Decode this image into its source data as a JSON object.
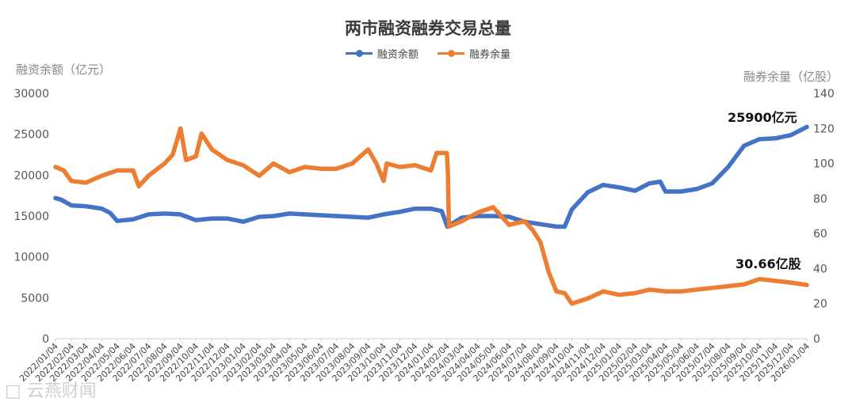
{
  "chart_data": {
    "type": "line",
    "title": "两市融资融券交易总量",
    "ylabel_left": "融资余额（亿元）",
    "ylabel_right": "融券余量（亿股）",
    "ylim_left": [
      0,
      30000
    ],
    "yticks_left": [
      "0",
      "5000",
      "10000",
      "15000",
      "20000",
      "25000",
      "30000"
    ],
    "ylim_right": [
      0,
      140
    ],
    "yticks_right": [
      "0",
      "20",
      "40",
      "60",
      "80",
      "100",
      "120",
      "140"
    ],
    "legend_position": "top-center",
    "grid": false,
    "x_range": [
      "2022/01/04",
      "2026/01/04"
    ],
    "x_tick_labels": [
      "2022/01/04",
      "2022/02/04",
      "2022/03/04",
      "2022/04/04",
      "2022/05/04",
      "2022/06/04",
      "2022/07/04",
      "2022/08/04",
      "2022/09/04",
      "2022/10/04",
      "2022/11/04",
      "2022/12/04",
      "2023/01/04",
      "2023/02/04",
      "2023/03/04",
      "2023/04/04",
      "2023/05/04",
      "2023/06/04",
      "2023/07/04",
      "2023/08/04",
      "2023/09/04",
      "2023/10/04",
      "2023/11/04",
      "2023/12/04",
      "2024/01/04",
      "2024/02/04",
      "2024/03/04",
      "2024/04/04",
      "2024/05/04",
      "2024/06/04",
      "2024/07/04",
      "2024/08/04",
      "2024/09/04",
      "2024/10/04",
      "2024/11/04",
      "2024/12/04",
      "2025/01/04",
      "2025/02/04",
      "2025/03/04",
      "2025/04/04",
      "2025/05/04",
      "2025/06/04",
      "2025/07/04",
      "2025/08/04",
      "2025/09/04",
      "2025/10/04",
      "2025/11/04",
      "2025/12/04",
      "2026/01/04"
    ],
    "series": [
      {
        "name": "融资余额",
        "axis": "left",
        "color": "#4472C4",
        "points": [
          [
            "2022/01/04",
            17200
          ],
          [
            "2022/01/15",
            17000
          ],
          [
            "2022/02/04",
            16300
          ],
          [
            "2022/03/04",
            16200
          ],
          [
            "2022/04/04",
            15900
          ],
          [
            "2022/04/20",
            15400
          ],
          [
            "2022/05/04",
            14400
          ],
          [
            "2022/06/04",
            14600
          ],
          [
            "2022/07/04",
            15200
          ],
          [
            "2022/08/04",
            15300
          ],
          [
            "2022/09/04",
            15200
          ],
          [
            "2022/10/04",
            14500
          ],
          [
            "2022/11/04",
            14700
          ],
          [
            "2022/12/04",
            14700
          ],
          [
            "2023/01/04",
            14300
          ],
          [
            "2023/02/04",
            14900
          ],
          [
            "2023/03/04",
            15000
          ],
          [
            "2023/04/04",
            15300
          ],
          [
            "2023/05/04",
            15200
          ],
          [
            "2023/06/04",
            15100
          ],
          [
            "2023/07/04",
            15000
          ],
          [
            "2023/08/04",
            14900
          ],
          [
            "2023/09/04",
            14800
          ],
          [
            "2023/10/04",
            15200
          ],
          [
            "2023/11/04",
            15500
          ],
          [
            "2023/12/04",
            15900
          ],
          [
            "2024/01/04",
            15900
          ],
          [
            "2024/01/25",
            15600
          ],
          [
            "2024/02/05",
            13700
          ],
          [
            "2024/03/04",
            14800
          ],
          [
            "2024/04/04",
            15000
          ],
          [
            "2024/05/04",
            15000
          ],
          [
            "2024/06/04",
            14900
          ],
          [
            "2024/07/04",
            14300
          ],
          [
            "2024/08/04",
            14000
          ],
          [
            "2024/09/04",
            13700
          ],
          [
            "2024/09/20",
            13700
          ],
          [
            "2024/10/04",
            15800
          ],
          [
            "2024/11/04",
            17900
          ],
          [
            "2024/12/04",
            18800
          ],
          [
            "2025/01/04",
            18500
          ],
          [
            "2025/02/04",
            18100
          ],
          [
            "2025/03/04",
            19000
          ],
          [
            "2025/03/25",
            19200
          ],
          [
            "2025/04/04",
            18000
          ],
          [
            "2025/05/04",
            18000
          ],
          [
            "2025/06/04",
            18300
          ],
          [
            "2025/07/04",
            19000
          ],
          [
            "2025/08/04",
            21000
          ],
          [
            "2025/09/04",
            23600
          ],
          [
            "2025/10/04",
            24400
          ],
          [
            "2025/11/04",
            24500
          ],
          [
            "2025/12/04",
            24900
          ],
          [
            "2026/01/04",
            25900
          ]
        ]
      },
      {
        "name": "融券余量",
        "axis": "right",
        "color": "#ED7D31",
        "points": [
          [
            "2022/01/04",
            98
          ],
          [
            "2022/01/20",
            96
          ],
          [
            "2022/02/04",
            90
          ],
          [
            "2022/03/04",
            89
          ],
          [
            "2022/04/04",
            93
          ],
          [
            "2022/05/04",
            96
          ],
          [
            "2022/06/04",
            96
          ],
          [
            "2022/06/15",
            87
          ],
          [
            "2022/07/04",
            93
          ],
          [
            "2022/08/04",
            100
          ],
          [
            "2022/08/20",
            105
          ],
          [
            "2022/09/04",
            120
          ],
          [
            "2022/09/15",
            102
          ],
          [
            "2022/10/04",
            104
          ],
          [
            "2022/10/15",
            117
          ],
          [
            "2022/11/04",
            108
          ],
          [
            "2022/12/04",
            102
          ],
          [
            "2023/01/04",
            99
          ],
          [
            "2023/02/04",
            93
          ],
          [
            "2023/03/04",
            100
          ],
          [
            "2023/04/04",
            95
          ],
          [
            "2023/05/04",
            98
          ],
          [
            "2023/06/04",
            97
          ],
          [
            "2023/07/04",
            97
          ],
          [
            "2023/08/04",
            100
          ],
          [
            "2023/09/04",
            108
          ],
          [
            "2023/09/20",
            100
          ],
          [
            "2023/10/04",
            90
          ],
          [
            "2023/10/10",
            100
          ],
          [
            "2023/11/04",
            98
          ],
          [
            "2023/12/04",
            99
          ],
          [
            "2024/01/04",
            96
          ],
          [
            "2024/01/15",
            106
          ],
          [
            "2024/02/04",
            106
          ],
          [
            "2024/02/06",
            95
          ],
          [
            "2024/02/08",
            64
          ],
          [
            "2024/03/04",
            67
          ],
          [
            "2024/04/04",
            72
          ],
          [
            "2024/05/04",
            75
          ],
          [
            "2024/06/04",
            65
          ],
          [
            "2024/07/04",
            67
          ],
          [
            "2024/07/20",
            62
          ],
          [
            "2024/08/04",
            55
          ],
          [
            "2024/08/20",
            38
          ],
          [
            "2024/09/04",
            27
          ],
          [
            "2024/09/20",
            26
          ],
          [
            "2024/10/04",
            20
          ],
          [
            "2024/11/04",
            23
          ],
          [
            "2024/12/04",
            27
          ],
          [
            "2025/01/04",
            25
          ],
          [
            "2025/02/04",
            26
          ],
          [
            "2025/03/04",
            28
          ],
          [
            "2025/04/04",
            27
          ],
          [
            "2025/05/04",
            27
          ],
          [
            "2025/06/04",
            28
          ],
          [
            "2025/07/04",
            29
          ],
          [
            "2025/08/04",
            30
          ],
          [
            "2025/09/04",
            31
          ],
          [
            "2025/10/04",
            34
          ],
          [
            "2025/11/04",
            33
          ],
          [
            "2025/12/04",
            32
          ],
          [
            "2026/01/04",
            30.66
          ]
        ]
      }
    ],
    "annotations": {
      "financing_end": "25900亿元",
      "securities_end": "30.66亿股"
    }
  },
  "watermark": "□ 云燕财闻"
}
